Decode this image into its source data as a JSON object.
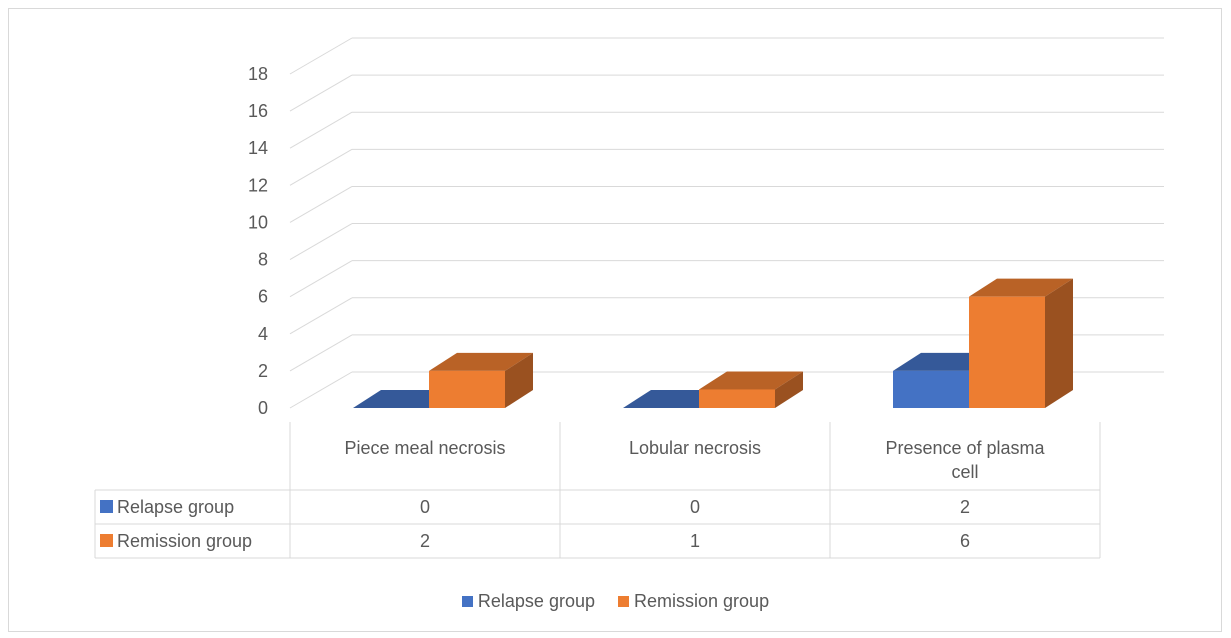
{
  "chart_data": {
    "type": "bar",
    "style": "3d-clustered-column-with-data-table",
    "categories": [
      "Piece meal necrosis",
      "Lobular necrosis",
      "Presence of plasma cell"
    ],
    "series": [
      {
        "name": "Relapse group",
        "values": [
          0,
          0,
          2
        ],
        "color": "#4472c4"
      },
      {
        "name": "Remission group",
        "values": [
          2,
          1,
          6
        ],
        "color": "#ed7d31"
      }
    ],
    "y_ticks": [
      "0",
      "2",
      "4",
      "6",
      "8",
      "10",
      "12",
      "14",
      "16",
      "18"
    ],
    "ylim": [
      0,
      18
    ],
    "grid": true,
    "legend_position": "bottom",
    "data_table": true
  }
}
